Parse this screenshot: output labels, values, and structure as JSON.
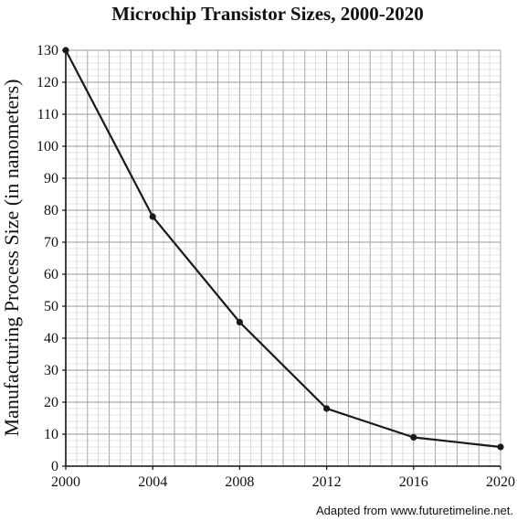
{
  "chart_data": {
    "type": "line",
    "title": "Microchip Transistor Sizes, 2000-2020",
    "xlabel": "",
    "ylabel": "Manufacturing Process Size (in nanometers)",
    "source": "Adapted from www.futuretimeline.net.",
    "x": [
      2000,
      2004,
      2008,
      2012,
      2016,
      2020
    ],
    "series": [
      {
        "values": [
          130,
          78,
          45,
          18,
          9,
          6
        ]
      }
    ],
    "xlim": [
      2000,
      2020
    ],
    "ylim": [
      0,
      130
    ],
    "x_ticks": [
      "2000",
      "2004",
      "2008",
      "2012",
      "2016",
      "2020"
    ],
    "y_ticks": [
      "0",
      "10",
      "20",
      "30",
      "40",
      "50",
      "60",
      "70",
      "80",
      "90",
      "100",
      "110",
      "120",
      "130"
    ],
    "grid": true,
    "colors": {
      "line": "#1a1a1a",
      "grid_minor": "#c8c8c8",
      "grid_major": "#9a9a9a",
      "axis": "#111111"
    }
  }
}
